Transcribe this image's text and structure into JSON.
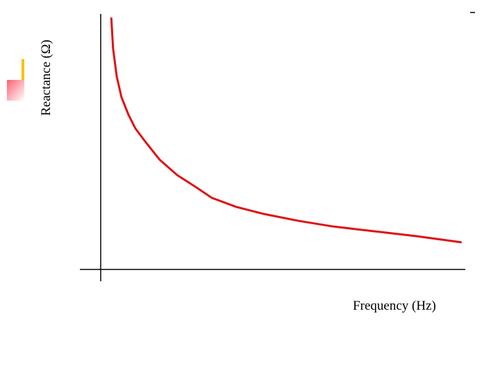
{
  "chart_data": {
    "type": "line",
    "x_label": "Frequency (Hz)",
    "y_label": "Reactance (Ω)",
    "x": [
      2.9,
      3.4,
      4.4,
      5.7,
      7.6,
      9.5,
      12.4,
      16.2,
      21.0,
      25.7,
      30.5,
      37.1,
      44.8,
      54.3,
      63.8,
      75.2,
      86.7,
      99.0
    ],
    "series": [
      {
        "color": "#e01010",
        "values": [
          98.6,
          86.4,
          75.5,
          67.4,
          60.6,
          55.2,
          49.7,
          42.9,
          36.9,
          32.6,
          28.0,
          24.5,
          21.7,
          19.0,
          16.8,
          14.9,
          13.0,
          10.6
        ]
      }
    ],
    "xlim": [
      0,
      100
    ],
    "ylim": [
      0,
      100
    ]
  }
}
